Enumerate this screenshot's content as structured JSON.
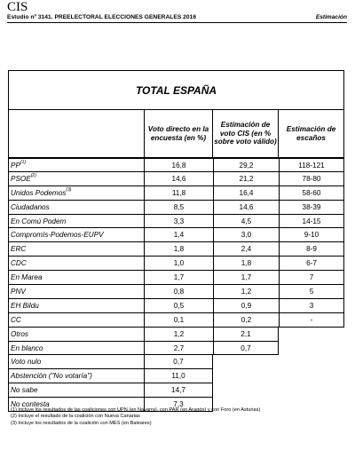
{
  "header": {
    "logo": "CIS",
    "study": "Estudio nº 3141. PREELECTORAL ELECCIONES GENERALES 2016",
    "right_label": "Estimación"
  },
  "table": {
    "title": "TOTAL ESPAÑA",
    "columns": [
      "Voto directo en la encuesta (en %)",
      "Estimación de voto CIS (en % sobre voto válido)",
      "Estimación de escaños"
    ],
    "rows": [
      {
        "name": "PP",
        "sup": "(1)",
        "v1": "16,8",
        "v2": "29,2",
        "v3": "118-121"
      },
      {
        "name": "PSOE",
        "sup": "(2)",
        "v1": "14,6",
        "v2": "21,2",
        "v3": "78-80"
      },
      {
        "name": "Unidos Podemos",
        "sup": "(3)",
        "v1": "11,8",
        "v2": "16,4",
        "v3": "58-60"
      },
      {
        "name": "Ciudadanos",
        "sup": "",
        "v1": "8,5",
        "v2": "14,6",
        "v3": "38-39"
      },
      {
        "name": "En Comú Podem",
        "sup": "",
        "v1": "3,3",
        "v2": "4,5",
        "v3": "14-15"
      },
      {
        "name": "Compromís-Podemos-EUPV",
        "sup": "",
        "v1": "1,4",
        "v2": "3,0",
        "v3": "9-10"
      },
      {
        "name": "ERC",
        "sup": "",
        "v1": "1,8",
        "v2": "2,4",
        "v3": "8-9"
      },
      {
        "name": "CDC",
        "sup": "",
        "v1": "1,0",
        "v2": "1,8",
        "v3": "6-7"
      },
      {
        "name": "En Marea",
        "sup": "",
        "v1": "1,7",
        "v2": "1,7",
        "v3": "7"
      },
      {
        "name": "PNV",
        "sup": "",
        "v1": "0,8",
        "v2": "1,2",
        "v3": "5"
      },
      {
        "name": "EH Bildu",
        "sup": "",
        "v1": "0,5",
        "v2": "0,9",
        "v3": "3"
      },
      {
        "name": "CC",
        "sup": "",
        "v1": "0,1",
        "v2": "0,2",
        "v3": "-"
      },
      {
        "name": "Otros",
        "sup": "",
        "v1": "1,2",
        "v2": "2,1"
      },
      {
        "name": "En blanco",
        "sup": "",
        "v1": "2,7",
        "v2": "0,7"
      },
      {
        "name": "Voto nulo",
        "sup": "",
        "v1": "0,7"
      },
      {
        "name": "Abstención (\"No votaría\")",
        "sup": "",
        "v1": "11,0"
      },
      {
        "name": "No sabe",
        "sup": "",
        "v1": "14,7"
      },
      {
        "name": "No contesta",
        "sup": "",
        "v1": "7,3"
      }
    ]
  },
  "footnotes": [
    "(1)  Incluye los resultados de las coaliciones con UPN (en Navarra), con PAR (en Aragón) y con Foro (en Asturias)",
    "(2)  Incluye el resultado de la coalición con Nueva Canarias",
    "(3)  Incluye los resultados de la coalición con MÉS (en Baleares)"
  ]
}
